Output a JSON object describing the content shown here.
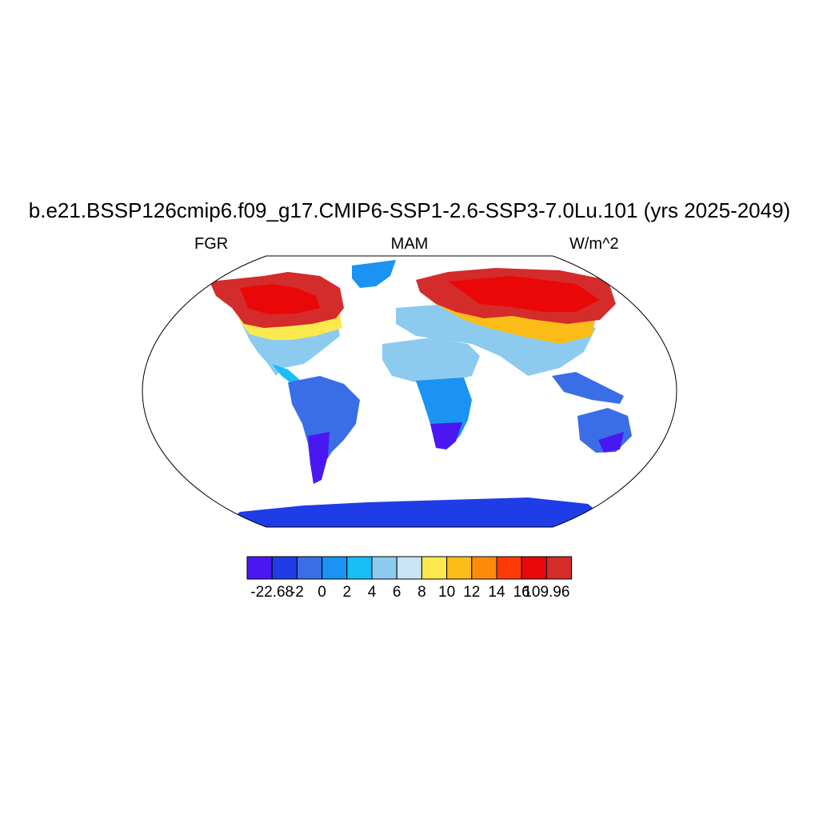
{
  "title": "b.e21.BSSP126cmip6.f09_g17.CMIP6-SSP1-2.6-SSP3-7.0Lu.101 (yrs 2025-2049)",
  "subtitle_left": "FGR",
  "subtitle_center": "MAM",
  "subtitle_right": "W/m^2",
  "colorbar": {
    "colors": [
      "#4a17f2",
      "#1e3de6",
      "#3a6ee6",
      "#1a93f2",
      "#18bef6",
      "#8ccbef",
      "#c8e4f6",
      "#fbe94f",
      "#fdbd19",
      "#fd8b08",
      "#fd3a07",
      "#ea0707",
      "#d42b2b"
    ],
    "labels": [
      "-22.68",
      "-2",
      "0",
      "2",
      "4",
      "6",
      "8",
      "10",
      "12",
      "14",
      "16",
      "109.96"
    ]
  },
  "legend_colors": {
    "ocean": "#ffffff",
    "coastline": "#000000"
  }
}
